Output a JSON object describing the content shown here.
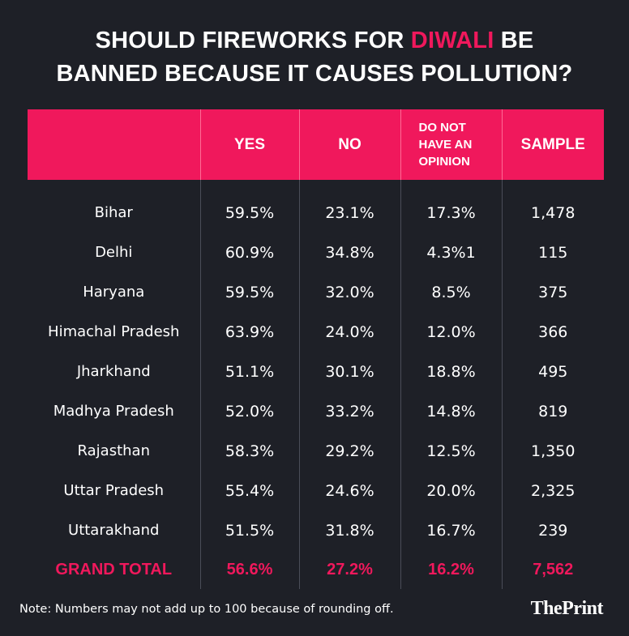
{
  "title": {
    "line1_pre": "SHOULD FIREWORKS FOR ",
    "line1_highlight": "DIWALI",
    "line1_post": " BE",
    "line2": "BANNED BECAUSE IT CAUSES POLLUTION?"
  },
  "colors": {
    "background": "#1e2027",
    "accent": "#f0185c",
    "text": "#ffffff"
  },
  "chart_data": {
    "type": "table",
    "title": "SHOULD FIREWORKS FOR DIWALI BE BANNED BECAUSE IT CAUSES POLLUTION?",
    "columns": [
      "",
      "YES",
      "NO",
      "DO NOT HAVE AN OPINION",
      "SAMPLE"
    ],
    "column_header_lines": {
      "yes": "YES",
      "no": "NO",
      "opinion_1": "DO NOT",
      "opinion_2": "HAVE AN",
      "opinion_3": "OPINION",
      "sample": "SAMPLE"
    },
    "rows": [
      {
        "state": "Bihar",
        "yes": "59.5%",
        "no": "23.1%",
        "no_opinion": "17.3%",
        "sample": "1,478"
      },
      {
        "state": "Delhi",
        "yes": "60.9%",
        "no": "34.8%",
        "no_opinion": "4.3%1",
        "sample": "115"
      },
      {
        "state": "Haryana",
        "yes": "59.5%",
        "no": "32.0%",
        "no_opinion": "8.5%",
        "sample": "375"
      },
      {
        "state": "Himachal Pradesh",
        "yes": "63.9%",
        "no": "24.0%",
        "no_opinion": "12.0%",
        "sample": "366"
      },
      {
        "state": "Jharkhand",
        "yes": "51.1%",
        "no": "30.1%",
        "no_opinion": "18.8%",
        "sample": "495"
      },
      {
        "state": "Madhya Pradesh",
        "yes": "52.0%",
        "no": "33.2%",
        "no_opinion": "14.8%",
        "sample": "819"
      },
      {
        "state": "Rajasthan",
        "yes": "58.3%",
        "no": "29.2%",
        "no_opinion": "12.5%",
        "sample": "1,350"
      },
      {
        "state": "Uttar Pradesh",
        "yes": "55.4%",
        "no": "24.6%",
        "no_opinion": "20.0%",
        "sample": "2,325"
      },
      {
        "state": "Uttarakhand",
        "yes": "51.5%",
        "no": "31.8%",
        "no_opinion": "16.7%",
        "sample": "239"
      }
    ],
    "total": {
      "state": "GRAND TOTAL",
      "yes": "56.6%",
      "no": "27.2%",
      "no_opinion": "16.2%",
      "sample": "7,562"
    }
  },
  "note": "Note: Numbers may not add up to 100 because of rounding off.",
  "brand": "ThePrint"
}
